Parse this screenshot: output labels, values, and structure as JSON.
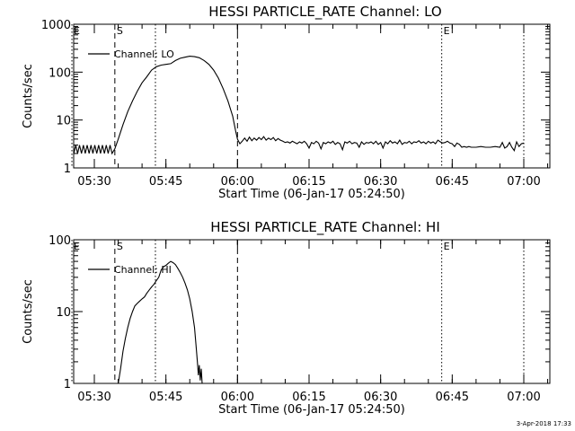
{
  "timestamp": "3-Apr-2018 17:33",
  "chart_data": [
    {
      "type": "line",
      "title": "HESSI PARTICLE_RATE Channel: LO",
      "xlabel": "Start Time (06-Jan-17 05:24:50)",
      "ylabel": "Counts/sec",
      "y_scale": "log",
      "ylim": [
        1,
        1000
      ],
      "xlim_minutes": [
        24.83,
        84.83
      ],
      "y_ticks": [
        {
          "value": 1,
          "label": "1"
        },
        {
          "value": 10,
          "label": "10"
        },
        {
          "value": 100,
          "label": "100"
        },
        {
          "value": 1000,
          "label": "1000"
        }
      ],
      "x_ticks": [
        {
          "minute": 30,
          "label": "05:30"
        },
        {
          "minute": 45,
          "label": "05:45"
        },
        {
          "minute": 60,
          "label": "06:00"
        },
        {
          "minute": 75,
          "label": "06:15"
        },
        {
          "minute": 90,
          "label": "06:30"
        },
        {
          "minute": 105,
          "label": "06:45"
        },
        {
          "minute": 120,
          "label": "07:00"
        }
      ],
      "legend": {
        "label": "Channel: LO",
        "placement": "top-left"
      },
      "markers": [
        {
          "label": "E",
          "minute": 25.3,
          "style": "dotted"
        },
        {
          "label": "S",
          "minute": 34.3,
          "style": "dashed"
        },
        {
          "label": "",
          "minute": 42.8,
          "style": "dotted"
        },
        {
          "label": "",
          "minute": 60.0,
          "style": "dashed"
        },
        {
          "label": "E",
          "minute": 102.8,
          "style": "dotted"
        },
        {
          "label": "",
          "minute": 120.0,
          "style": "dotted"
        }
      ],
      "series": [
        {
          "points": [
            [
              25.3,
              3
            ],
            [
              25.7,
              2
            ],
            [
              26.1,
              3
            ],
            [
              26.5,
              2
            ],
            [
              26.9,
              3
            ],
            [
              27.3,
              2
            ],
            [
              27.7,
              3
            ],
            [
              28.1,
              2
            ],
            [
              28.5,
              3
            ],
            [
              28.9,
              2
            ],
            [
              29.3,
              3
            ],
            [
              29.7,
              2
            ],
            [
              30.1,
              3
            ],
            [
              30.5,
              2
            ],
            [
              30.9,
              3
            ],
            [
              31.3,
              2
            ],
            [
              31.7,
              3
            ],
            [
              32.1,
              2
            ],
            [
              32.5,
              3
            ],
            [
              32.9,
              2
            ],
            [
              33.3,
              3
            ],
            [
              33.7,
              2
            ],
            [
              34.3,
              2.5
            ],
            [
              35,
              4
            ],
            [
              36,
              8
            ],
            [
              37,
              15
            ],
            [
              38,
              25
            ],
            [
              39,
              40
            ],
            [
              40,
              60
            ],
            [
              41,
              80
            ],
            [
              42,
              110
            ],
            [
              43,
              130
            ],
            [
              44,
              140
            ],
            [
              45,
              145
            ],
            [
              46,
              150
            ],
            [
              47,
              175
            ],
            [
              48,
              195
            ],
            [
              49,
              205
            ],
            [
              50,
              215
            ],
            [
              51,
              210
            ],
            [
              52,
              200
            ],
            [
              53,
              175
            ],
            [
              54,
              145
            ],
            [
              55,
              110
            ],
            [
              56,
              75
            ],
            [
              57,
              45
            ],
            [
              58,
              25
            ],
            [
              59,
              12
            ],
            [
              59.6,
              6
            ],
            [
              60,
              4
            ],
            [
              60.5,
              3.2
            ],
            [
              61,
              3.6
            ],
            [
              61.5,
              4.2
            ],
            [
              62,
              3.6
            ],
            [
              62.5,
              4.4
            ],
            [
              63,
              3.7
            ],
            [
              63.5,
              4.2
            ],
            [
              64,
              3.8
            ],
            [
              64.5,
              4.3
            ],
            [
              65,
              3.9
            ],
            [
              65.5,
              4.5
            ],
            [
              66,
              3.8
            ],
            [
              66.5,
              4.2
            ],
            [
              67,
              3.9
            ],
            [
              67.5,
              4.3
            ],
            [
              68,
              3.7
            ],
            [
              68.5,
              4.1
            ],
            [
              69,
              3.8
            ],
            [
              69.5,
              3.6
            ],
            [
              70,
              3.4
            ],
            [
              70.5,
              3.5
            ],
            [
              71,
              3.3
            ],
            [
              71.5,
              3.6
            ],
            [
              72,
              3.4
            ],
            [
              72.5,
              3.2
            ],
            [
              73,
              3.5
            ],
            [
              73.5,
              3.3
            ],
            [
              74,
              3.6
            ],
            [
              74.5,
              3.2
            ],
            [
              75,
              2.6
            ],
            [
              75.5,
              3.4
            ],
            [
              76,
              3.2
            ],
            [
              76.5,
              3.6
            ],
            [
              77,
              3.3
            ],
            [
              77.5,
              2.5
            ],
            [
              78,
              3.4
            ],
            [
              78.5,
              3.2
            ],
            [
              79,
              3.5
            ],
            [
              79.5,
              3.3
            ],
            [
              80,
              3.6
            ],
            [
              80.5,
              3.1
            ],
            [
              81,
              3.4
            ],
            [
              81.5,
              3.2
            ],
            [
              82,
              2.4
            ],
            [
              82.5,
              3.5
            ],
            [
              83,
              3.3
            ],
            [
              83.5,
              3.6
            ],
            [
              84,
              3.2
            ],
            [
              84.5,
              3.4
            ],
            [
              85,
              3.3
            ],
            [
              85.5,
              2.7
            ],
            [
              86,
              3.5
            ],
            [
              86.5,
              3.1
            ],
            [
              87,
              3.4
            ],
            [
              87.5,
              3.3
            ],
            [
              88,
              3.5
            ],
            [
              88.5,
              3.2
            ],
            [
              89,
              3.6
            ],
            [
              89.5,
              3.1
            ],
            [
              90,
              3.4
            ],
            [
              90.5,
              2.6
            ],
            [
              91,
              3.5
            ],
            [
              91.5,
              3.2
            ],
            [
              92,
              3.7
            ],
            [
              92.5,
              3.3
            ],
            [
              93,
              3.5
            ],
            [
              93.5,
              3.2
            ],
            [
              94,
              3.8
            ],
            [
              94.5,
              3.1
            ],
            [
              95,
              3.4
            ],
            [
              95.5,
              3.3
            ],
            [
              96,
              3.6
            ],
            [
              96.5,
              3.2
            ],
            [
              97,
              3.5
            ],
            [
              97.5,
              3.4
            ],
            [
              98,
              3.7
            ],
            [
              98.5,
              3.3
            ],
            [
              99,
              3.5
            ],
            [
              99.5,
              3.2
            ],
            [
              100,
              3.6
            ],
            [
              100.5,
              3.3
            ],
            [
              101,
              3.5
            ],
            [
              101.5,
              3.2
            ],
            [
              102,
              3.8
            ],
            [
              102.5,
              3.5
            ],
            [
              103,
              3.3
            ],
            [
              103.5,
              3.4
            ],
            [
              104,
              3.6
            ],
            [
              104.5,
              3.3
            ],
            [
              105,
              3.2
            ],
            [
              105.5,
              2.8
            ],
            [
              106,
              3.3
            ],
            [
              106.5,
              3.1
            ],
            [
              107,
              2.7
            ],
            [
              107.5,
              2.8
            ],
            [
              108,
              2.7
            ],
            [
              108.5,
              2.8
            ],
            [
              109,
              2.7
            ],
            [
              110,
              2.7
            ],
            [
              111,
              2.8
            ],
            [
              112,
              2.7
            ],
            [
              113,
              2.7
            ],
            [
              114,
              2.8
            ],
            [
              115,
              2.7
            ],
            [
              115.5,
              3.4
            ],
            [
              116,
              2.6
            ],
            [
              116.5,
              2.8
            ],
            [
              117,
              3.4
            ],
            [
              117.5,
              2.7
            ],
            [
              118,
              2.3
            ],
            [
              118.5,
              3.5
            ],
            [
              119,
              2.8
            ],
            [
              119.5,
              3.2
            ],
            [
              120,
              3.3
            ]
          ]
        }
      ]
    },
    {
      "type": "line",
      "title": "HESSI PARTICLE_RATE Channel: HI",
      "xlabel": "Start Time (06-Jan-17 05:24:50)",
      "ylabel": "Counts/sec",
      "y_scale": "log",
      "ylim": [
        1,
        100
      ],
      "xlim_minutes": [
        24.83,
        84.83
      ],
      "y_ticks": [
        {
          "value": 1,
          "label": "1"
        },
        {
          "value": 10,
          "label": "10"
        },
        {
          "value": 100,
          "label": "100"
        }
      ],
      "x_ticks": [
        {
          "minute": 30,
          "label": "05:30"
        },
        {
          "minute": 45,
          "label": "05:45"
        },
        {
          "minute": 60,
          "label": "06:00"
        },
        {
          "minute": 75,
          "label": "06:15"
        },
        {
          "minute": 90,
          "label": "06:30"
        },
        {
          "minute": 105,
          "label": "06:45"
        },
        {
          "minute": 120,
          "label": "07:00"
        }
      ],
      "legend": {
        "label": "Channel: HI",
        "placement": "top-left"
      },
      "markers": [
        {
          "label": "E",
          "minute": 25.3,
          "style": "dotted"
        },
        {
          "label": "S",
          "minute": 34.3,
          "style": "dashed"
        },
        {
          "label": "",
          "minute": 42.8,
          "style": "dotted"
        },
        {
          "label": "",
          "minute": 60.0,
          "style": "dashed"
        },
        {
          "label": "E",
          "minute": 102.8,
          "style": "dotted"
        },
        {
          "label": "",
          "minute": 120.0,
          "style": "dotted"
        }
      ],
      "series": [
        {
          "points": [
            [
              35,
              1
            ],
            [
              35.5,
              1.6
            ],
            [
              36,
              2.8
            ],
            [
              36.5,
              4.2
            ],
            [
              37,
              6
            ],
            [
              37.5,
              8
            ],
            [
              38,
              10
            ],
            [
              38.5,
              12
            ],
            [
              39,
              13
            ],
            [
              39.5,
              14
            ],
            [
              40,
              15
            ],
            [
              40.5,
              16
            ],
            [
              41,
              18
            ],
            [
              41.5,
              20
            ],
            [
              42,
              22
            ],
            [
              42.5,
              24
            ],
            [
              43,
              27
            ],
            [
              43.5,
              30
            ],
            [
              44,
              38
            ],
            [
              44.5,
              42
            ],
            [
              45,
              44
            ],
            [
              45.5,
              47
            ],
            [
              46,
              50
            ],
            [
              46.5,
              48
            ],
            [
              47,
              45
            ],
            [
              47.5,
              40
            ],
            [
              48,
              35
            ],
            [
              48.5,
              30
            ],
            [
              49,
              25
            ],
            [
              49.5,
              20
            ],
            [
              50,
              15
            ],
            [
              50.5,
              10
            ],
            [
              51,
              6
            ],
            [
              51.3,
              3.5
            ],
            [
              51.6,
              2
            ],
            [
              51.8,
              1.3
            ],
            [
              52,
              1.8
            ],
            [
              52.2,
              1.1
            ],
            [
              52.4,
              1.6
            ],
            [
              52.6,
              1
            ]
          ]
        }
      ]
    }
  ]
}
